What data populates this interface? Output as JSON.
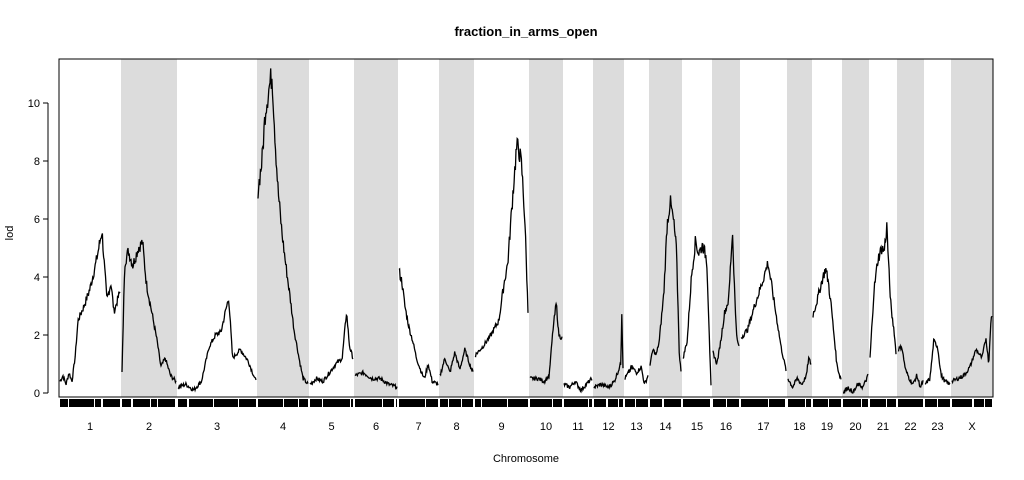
{
  "chart_data": {
    "type": "line",
    "title": "fraction_in_arms_open",
    "xlabel": "Chromosome",
    "ylabel": "lod",
    "ylim": [
      0,
      11.4
    ],
    "yticks": [
      0,
      2,
      4,
      6,
      8,
      10
    ],
    "grid": false,
    "legend": "none",
    "colors": {
      "line": "#000000",
      "shade": "#dcdcdc",
      "markers": "#000000"
    },
    "chromosomes": [
      {
        "name": "1",
        "shaded": false,
        "points": [
          [
            0.0,
            0.4
          ],
          [
            0.05,
            0.6
          ],
          [
            0.1,
            0.3
          ],
          [
            0.15,
            0.7
          ],
          [
            0.2,
            0.4
          ],
          [
            0.25,
            1.2
          ],
          [
            0.3,
            2.5
          ],
          [
            0.4,
            3.0
          ],
          [
            0.5,
            3.6
          ],
          [
            0.6,
            4.5
          ],
          [
            0.7,
            5.6
          ],
          [
            0.78,
            3.2
          ],
          [
            0.85,
            3.8
          ],
          [
            0.9,
            2.8
          ],
          [
            1.0,
            3.5
          ]
        ]
      },
      {
        "name": "2",
        "shaded": true,
        "points": [
          [
            0.0,
            0.7
          ],
          [
            0.05,
            4.5
          ],
          [
            0.12,
            4.9
          ],
          [
            0.2,
            4.4
          ],
          [
            0.3,
            5.0
          ],
          [
            0.38,
            5.2
          ],
          [
            0.45,
            3.8
          ],
          [
            0.55,
            2.8
          ],
          [
            0.65,
            1.8
          ],
          [
            0.72,
            0.9
          ],
          [
            0.8,
            1.2
          ],
          [
            0.9,
            0.6
          ],
          [
            1.0,
            0.4
          ]
        ]
      },
      {
        "name": "3",
        "shaded": false,
        "points": [
          [
            0.0,
            0.2
          ],
          [
            0.1,
            0.3
          ],
          [
            0.2,
            0.1
          ],
          [
            0.3,
            0.4
          ],
          [
            0.4,
            1.6
          ],
          [
            0.48,
            2.0
          ],
          [
            0.55,
            2.1
          ],
          [
            0.65,
            3.3
          ],
          [
            0.7,
            1.2
          ],
          [
            0.8,
            1.5
          ],
          [
            0.9,
            1.1
          ],
          [
            1.0,
            0.4
          ]
        ]
      },
      {
        "name": "4",
        "shaded": true,
        "points": [
          [
            0.0,
            7.0
          ],
          [
            0.08,
            8.0
          ],
          [
            0.15,
            9.8
          ],
          [
            0.22,
            10.5
          ],
          [
            0.28,
            11.0
          ],
          [
            0.35,
            8.5
          ],
          [
            0.4,
            7.0
          ],
          [
            0.48,
            5.5
          ],
          [
            0.55,
            4.5
          ],
          [
            0.65,
            3.2
          ],
          [
            0.72,
            2.2
          ],
          [
            0.82,
            1.2
          ],
          [
            0.9,
            0.5
          ],
          [
            1.0,
            0.3
          ]
        ]
      },
      {
        "name": "5",
        "shaded": false,
        "points": [
          [
            0.0,
            0.3
          ],
          [
            0.15,
            0.5
          ],
          [
            0.3,
            0.4
          ],
          [
            0.45,
            0.7
          ],
          [
            0.6,
            1.0
          ],
          [
            0.75,
            1.2
          ],
          [
            0.85,
            2.8
          ],
          [
            0.92,
            1.6
          ],
          [
            1.0,
            1.2
          ]
        ]
      },
      {
        "name": "6",
        "shaded": true,
        "points": [
          [
            0.0,
            0.6
          ],
          [
            0.2,
            0.7
          ],
          [
            0.4,
            0.5
          ],
          [
            0.6,
            0.5
          ],
          [
            0.8,
            0.3
          ],
          [
            1.0,
            0.2
          ]
        ]
      },
      {
        "name": "7",
        "shaded": false,
        "points": [
          [
            0.0,
            4.2
          ],
          [
            0.08,
            3.8
          ],
          [
            0.15,
            3.0
          ],
          [
            0.25,
            2.3
          ],
          [
            0.35,
            1.8
          ],
          [
            0.45,
            1.2
          ],
          [
            0.55,
            0.8
          ],
          [
            0.65,
            0.5
          ],
          [
            0.75,
            1.0
          ],
          [
            0.85,
            0.4
          ],
          [
            1.0,
            0.3
          ]
        ]
      },
      {
        "name": "8",
        "shaded": true,
        "points": [
          [
            0.0,
            0.6
          ],
          [
            0.15,
            1.2
          ],
          [
            0.3,
            0.7
          ],
          [
            0.45,
            1.4
          ],
          [
            0.6,
            0.8
          ],
          [
            0.75,
            1.5
          ],
          [
            0.9,
            1.0
          ],
          [
            1.0,
            0.7
          ]
        ]
      },
      {
        "name": "9",
        "shaded": false,
        "points": [
          [
            0.0,
            1.3
          ],
          [
            0.15,
            1.6
          ],
          [
            0.3,
            2.0
          ],
          [
            0.45,
            2.5
          ],
          [
            0.55,
            3.8
          ],
          [
            0.62,
            4.5
          ],
          [
            0.7,
            6.5
          ],
          [
            0.78,
            8.4
          ],
          [
            0.82,
            8.5
          ],
          [
            0.88,
            7.8
          ],
          [
            0.94,
            6.0
          ],
          [
            1.0,
            2.8
          ]
        ]
      },
      {
        "name": "10",
        "shaded": true,
        "points": [
          [
            0.0,
            0.5
          ],
          [
            0.25,
            0.5
          ],
          [
            0.45,
            0.4
          ],
          [
            0.6,
            0.6
          ],
          [
            0.72,
            2.2
          ],
          [
            0.82,
            3.1
          ],
          [
            0.9,
            2.0
          ],
          [
            1.0,
            1.9
          ]
        ]
      },
      {
        "name": "11",
        "shaded": false,
        "points": [
          [
            0.0,
            0.3
          ],
          [
            0.2,
            0.2
          ],
          [
            0.4,
            0.4
          ],
          [
            0.6,
            0.1
          ],
          [
            0.8,
            0.3
          ],
          [
            1.0,
            0.5
          ]
        ]
      },
      {
        "name": "12",
        "shaded": true,
        "points": [
          [
            0.0,
            0.2
          ],
          [
            0.25,
            0.3
          ],
          [
            0.5,
            0.2
          ],
          [
            0.7,
            0.4
          ],
          [
            0.85,
            0.8
          ],
          [
            0.92,
            1.0
          ],
          [
            0.96,
            2.8
          ],
          [
            1.0,
            0.9
          ]
        ]
      },
      {
        "name": "13",
        "shaded": false,
        "points": [
          [
            0.0,
            0.5
          ],
          [
            0.3,
            0.9
          ],
          [
            0.5,
            0.7
          ],
          [
            0.7,
            0.9
          ],
          [
            0.85,
            0.3
          ],
          [
            1.0,
            0.6
          ]
        ]
      },
      {
        "name": "14",
        "shaded": true,
        "points": [
          [
            0.0,
            1.0
          ],
          [
            0.1,
            1.5
          ],
          [
            0.2,
            1.3
          ],
          [
            0.3,
            1.8
          ],
          [
            0.45,
            3.5
          ],
          [
            0.55,
            5.8
          ],
          [
            0.65,
            6.6
          ],
          [
            0.75,
            6.0
          ],
          [
            0.85,
            5.0
          ],
          [
            0.95,
            1.2
          ],
          [
            1.0,
            0.8
          ]
        ]
      },
      {
        "name": "15",
        "shaded": false,
        "points": [
          [
            0.0,
            1.2
          ],
          [
            0.15,
            1.8
          ],
          [
            0.3,
            4.0
          ],
          [
            0.45,
            5.3
          ],
          [
            0.55,
            4.8
          ],
          [
            0.7,
            5.1
          ],
          [
            0.85,
            4.6
          ],
          [
            1.0,
            0.2
          ]
        ]
      },
      {
        "name": "16",
        "shaded": true,
        "points": [
          [
            0.0,
            1.4
          ],
          [
            0.15,
            1.0
          ],
          [
            0.3,
            1.8
          ],
          [
            0.45,
            2.8
          ],
          [
            0.6,
            3.2
          ],
          [
            0.75,
            5.6
          ],
          [
            0.85,
            3.0
          ],
          [
            0.93,
            1.8
          ],
          [
            1.0,
            1.6
          ]
        ]
      },
      {
        "name": "17",
        "shaded": false,
        "points": [
          [
            0.0,
            1.9
          ],
          [
            0.15,
            2.2
          ],
          [
            0.3,
            3.0
          ],
          [
            0.45,
            3.7
          ],
          [
            0.6,
            4.5
          ],
          [
            0.7,
            3.5
          ],
          [
            0.8,
            2.5
          ],
          [
            0.9,
            1.5
          ],
          [
            1.0,
            0.8
          ]
        ]
      },
      {
        "name": "18",
        "shaded": true,
        "points": [
          [
            0.0,
            0.5
          ],
          [
            0.2,
            0.2
          ],
          [
            0.4,
            0.5
          ],
          [
            0.6,
            0.3
          ],
          [
            0.8,
            0.6
          ],
          [
            0.9,
            1.2
          ],
          [
            1.0,
            1.0
          ]
        ]
      },
      {
        "name": "19",
        "shaded": false,
        "points": [
          [
            0.0,
            2.7
          ],
          [
            0.15,
            3.2
          ],
          [
            0.3,
            3.8
          ],
          [
            0.45,
            4.3
          ],
          [
            0.55,
            3.8
          ],
          [
            0.65,
            3.0
          ],
          [
            0.75,
            2.0
          ],
          [
            0.85,
            1.0
          ],
          [
            0.95,
            0.6
          ],
          [
            1.0,
            0.5
          ]
        ]
      },
      {
        "name": "20",
        "shaded": true,
        "points": [
          [
            0.0,
            0.0
          ],
          [
            0.2,
            0.2
          ],
          [
            0.4,
            0.0
          ],
          [
            0.6,
            0.3
          ],
          [
            0.8,
            0.2
          ],
          [
            1.0,
            0.6
          ]
        ]
      },
      {
        "name": "21",
        "shaded": false,
        "points": [
          [
            0.0,
            1.2
          ],
          [
            0.15,
            3.5
          ],
          [
            0.3,
            4.6
          ],
          [
            0.45,
            5.0
          ],
          [
            0.55,
            4.9
          ],
          [
            0.65,
            5.8
          ],
          [
            0.72,
            4.3
          ],
          [
            0.82,
            2.8
          ],
          [
            0.92,
            2.2
          ],
          [
            1.0,
            1.4
          ]
        ]
      },
      {
        "name": "22",
        "shaded": true,
        "points": [
          [
            0.0,
            1.5
          ],
          [
            0.15,
            1.6
          ],
          [
            0.3,
            0.8
          ],
          [
            0.45,
            0.5
          ],
          [
            0.6,
            0.3
          ],
          [
            0.75,
            0.6
          ],
          [
            0.9,
            0.2
          ],
          [
            1.0,
            0.4
          ]
        ]
      },
      {
        "name": "23",
        "shaded": false,
        "points": [
          [
            0.0,
            0.3
          ],
          [
            0.2,
            0.5
          ],
          [
            0.35,
            1.8
          ],
          [
            0.5,
            1.6
          ],
          [
            0.65,
            0.6
          ],
          [
            0.8,
            0.4
          ],
          [
            1.0,
            0.3
          ]
        ]
      },
      {
        "name": "X",
        "shaded": true,
        "points": [
          [
            0.0,
            0.4
          ],
          [
            0.15,
            0.5
          ],
          [
            0.3,
            0.6
          ],
          [
            0.45,
            0.9
          ],
          [
            0.6,
            1.5
          ],
          [
            0.75,
            1.2
          ],
          [
            0.85,
            1.9
          ],
          [
            0.92,
            1.0
          ],
          [
            0.97,
            2.5
          ],
          [
            1.0,
            2.6
          ]
        ]
      }
    ]
  }
}
